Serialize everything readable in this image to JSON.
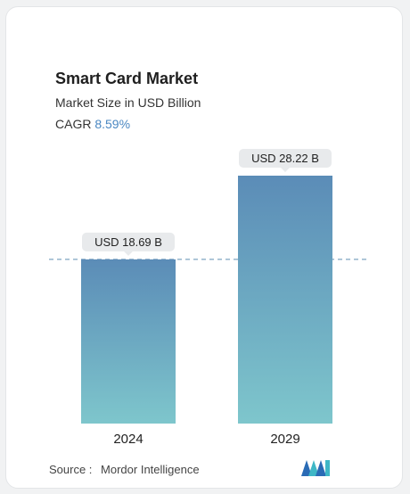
{
  "header": {
    "title": "Smart Card Market",
    "subtitle": "Market Size in USD Billion",
    "cagr_label": "CAGR",
    "cagr_value": "8.59%"
  },
  "footer": {
    "source_label": "Source :",
    "source_name": "Mordor Intelligence",
    "logo_icon": "mordor-intelligence-logo-icon"
  },
  "colors": {
    "bar_top": "#5b8cb7",
    "bar_bottom": "#7ec6cc",
    "accent": "#4a87c2",
    "label_bg": "#e8eaec",
    "dashed_line": "#5f8fb4"
  },
  "chart_data": {
    "type": "bar",
    "categories": [
      "2024",
      "2029"
    ],
    "values": [
      18.69,
      28.22
    ],
    "data_labels": [
      "USD 18.69 B",
      "USD 28.22 B"
    ],
    "unit": "USD Billion",
    "ylim": [
      0,
      28.22
    ],
    "grid": false,
    "legend": false,
    "reference_line": {
      "value": 18.69,
      "style": "dashed"
    }
  }
}
